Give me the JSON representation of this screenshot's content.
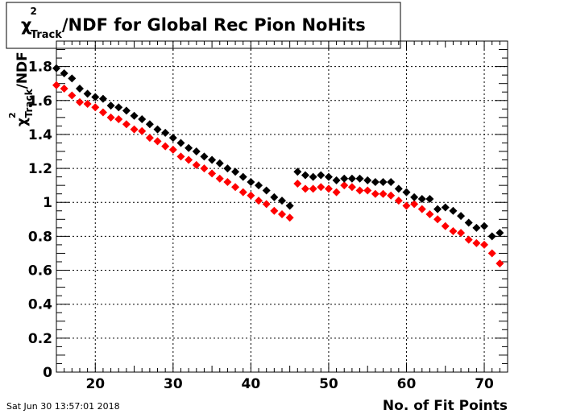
{
  "chart_data": {
    "type": "scatter",
    "title": {
      "chi": "χ",
      "sup": "2",
      "sub": "Track",
      "rest": "/NDF for Global Rec Pion NoHits"
    },
    "xlabel": "No. of Fit Points",
    "ylabel": {
      "chi": "χ",
      "sup": "2",
      "sub": "Track",
      "rest": "/NDF"
    },
    "xlim": [
      15,
      73
    ],
    "ylim": [
      0,
      1.95
    ],
    "x_ticks": [
      20,
      30,
      40,
      50,
      60,
      70
    ],
    "y_ticks": [
      0,
      0.2,
      0.4,
      0.6,
      0.8,
      1,
      1.2,
      1.4,
      1.6,
      1.8
    ],
    "x_tick_labels": [
      "20",
      "30",
      "40",
      "50",
      "60",
      "70"
    ],
    "y_tick_labels": [
      "0",
      "0.2",
      "0.4",
      "0.6",
      "0.8",
      "1",
      "1.2",
      "1.4",
      "1.6",
      "1.8"
    ],
    "grid": true,
    "marker": "diamond",
    "series": [
      {
        "color": "#000000",
        "x": [
          15,
          16,
          17,
          18,
          19,
          20,
          21,
          22,
          23,
          24,
          25,
          26,
          27,
          28,
          29,
          30,
          31,
          32,
          33,
          34,
          35,
          36,
          37,
          38,
          39,
          40,
          41,
          42,
          43,
          44,
          45,
          46,
          47,
          48,
          49,
          50,
          51,
          52,
          53,
          54,
          55,
          56,
          57,
          58,
          59,
          60,
          61,
          62,
          63,
          64,
          65,
          66,
          67,
          68,
          69,
          70,
          71,
          72
        ],
        "y": [
          1.79,
          1.76,
          1.73,
          1.67,
          1.64,
          1.62,
          1.61,
          1.57,
          1.56,
          1.54,
          1.51,
          1.49,
          1.46,
          1.43,
          1.41,
          1.38,
          1.35,
          1.32,
          1.3,
          1.27,
          1.25,
          1.23,
          1.2,
          1.18,
          1.15,
          1.12,
          1.1,
          1.07,
          1.03,
          1.01,
          0.98,
          1.18,
          1.16,
          1.15,
          1.16,
          1.15,
          1.13,
          1.14,
          1.14,
          1.14,
          1.13,
          1.12,
          1.12,
          1.12,
          1.08,
          1.06,
          1.03,
          1.02,
          1.02,
          0.96,
          0.97,
          0.95,
          0.92,
          0.88,
          0.85,
          0.86,
          0.8,
          0.82
        ]
      },
      {
        "color": "#ff0000",
        "x": [
          15,
          16,
          17,
          18,
          19,
          20,
          21,
          22,
          23,
          24,
          25,
          26,
          27,
          28,
          29,
          30,
          31,
          32,
          33,
          34,
          35,
          36,
          37,
          38,
          39,
          40,
          41,
          42,
          43,
          44,
          45,
          46,
          47,
          48,
          49,
          50,
          51,
          52,
          53,
          54,
          55,
          56,
          57,
          58,
          59,
          60,
          61,
          62,
          63,
          64,
          65,
          66,
          67,
          68,
          69,
          70,
          71,
          72
        ],
        "y": [
          1.69,
          1.67,
          1.63,
          1.59,
          1.58,
          1.56,
          1.53,
          1.5,
          1.49,
          1.46,
          1.43,
          1.42,
          1.38,
          1.36,
          1.33,
          1.31,
          1.27,
          1.25,
          1.22,
          1.2,
          1.17,
          1.14,
          1.12,
          1.09,
          1.06,
          1.04,
          1.01,
          0.99,
          0.95,
          0.93,
          0.91,
          1.11,
          1.08,
          1.08,
          1.09,
          1.08,
          1.06,
          1.1,
          1.09,
          1.07,
          1.07,
          1.05,
          1.05,
          1.04,
          1.01,
          0.98,
          0.99,
          0.96,
          0.93,
          0.9,
          0.86,
          0.83,
          0.82,
          0.78,
          0.76,
          0.75,
          0.7,
          0.64
        ]
      }
    ]
  },
  "timestamp": "Sat Jun 30 13:57:01 2018"
}
